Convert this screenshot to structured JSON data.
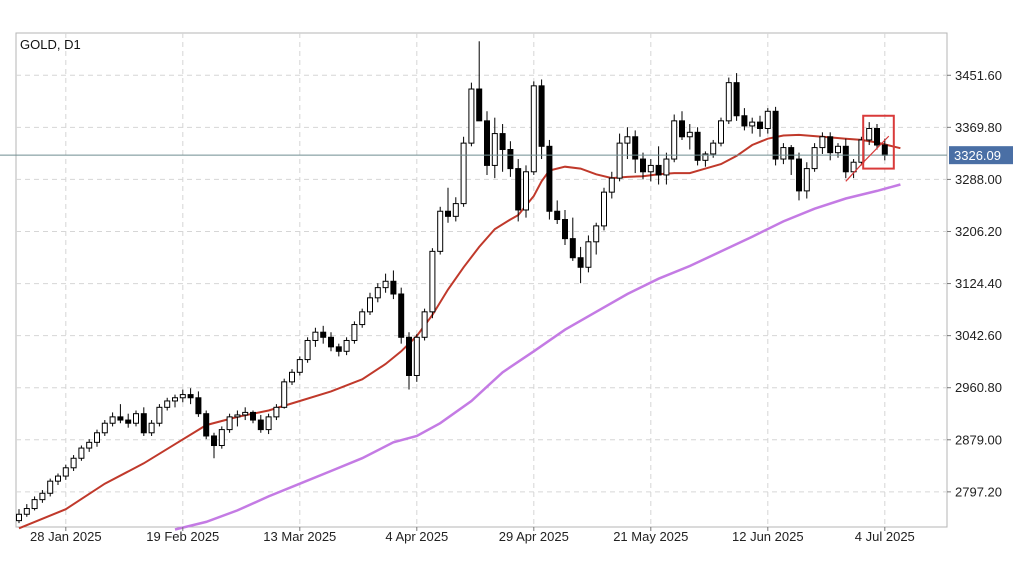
{
  "chart_data": {
    "type": "candlestick",
    "title": "GOLD, D1",
    "current_price_label": "3326.09",
    "y_tick_labels": [
      "3451.60",
      "3369.80",
      "3288.00",
      "3206.20",
      "3124.40",
      "3042.60",
      "2960.80",
      "2879.00",
      "2797.20"
    ],
    "y_ticks": [
      3451.6,
      3369.8,
      3288.0,
      3206.2,
      3124.4,
      3042.6,
      2960.8,
      2879.0,
      2797.2
    ],
    "ylim": [
      2742,
      3518
    ],
    "x_tick_labels": [
      "28 Jan 2025",
      "19 Feb 2025",
      "13 Mar 2025",
      "4 Apr 2025",
      "29 Apr 2025",
      "21 May 2025",
      "12 Jun 2025",
      "4 Jul 2025"
    ],
    "x_tick_indices": [
      6,
      21,
      36,
      51,
      66,
      81,
      96,
      111
    ],
    "grid": true,
    "current_price": 3326.09,
    "candles": [
      [
        2752,
        2770,
        2748,
        2762
      ],
      [
        2762,
        2778,
        2758,
        2771
      ],
      [
        2771,
        2790,
        2768,
        2785
      ],
      [
        2785,
        2800,
        2780,
        2795
      ],
      [
        2795,
        2818,
        2790,
        2814
      ],
      [
        2814,
        2826,
        2808,
        2822
      ],
      [
        2822,
        2840,
        2816,
        2835
      ],
      [
        2835,
        2855,
        2830,
        2850
      ],
      [
        2850,
        2870,
        2846,
        2866
      ],
      [
        2866,
        2880,
        2860,
        2875
      ],
      [
        2875,
        2895,
        2868,
        2890
      ],
      [
        2890,
        2910,
        2885,
        2905
      ],
      [
        2905,
        2922,
        2900,
        2915
      ],
      [
        2915,
        2935,
        2905,
        2910
      ],
      [
        2910,
        2920,
        2898,
        2905
      ],
      [
        2905,
        2925,
        2900,
        2920
      ],
      [
        2920,
        2930,
        2885,
        2890
      ],
      [
        2890,
        2910,
        2885,
        2905
      ],
      [
        2905,
        2935,
        2900,
        2930
      ],
      [
        2930,
        2945,
        2925,
        2940
      ],
      [
        2940,
        2950,
        2930,
        2945
      ],
      [
        2945,
        2958,
        2938,
        2950
      ],
      [
        2950,
        2960,
        2935,
        2945
      ],
      [
        2945,
        2955,
        2915,
        2920
      ],
      [
        2920,
        2925,
        2880,
        2885
      ],
      [
        2885,
        2890,
        2850,
        2870
      ],
      [
        2870,
        2900,
        2865,
        2895
      ],
      [
        2895,
        2920,
        2890,
        2915
      ],
      [
        2915,
        2925,
        2900,
        2918
      ],
      [
        2918,
        2930,
        2910,
        2922
      ],
      [
        2922,
        2925,
        2905,
        2910
      ],
      [
        2910,
        2918,
        2890,
        2895
      ],
      [
        2895,
        2920,
        2888,
        2915
      ],
      [
        2915,
        2935,
        2910,
        2930
      ],
      [
        2930,
        2975,
        2928,
        2970
      ],
      [
        2970,
        2990,
        2965,
        2985
      ],
      [
        2985,
        3010,
        2980,
        3005
      ],
      [
        3005,
        3040,
        3000,
        3035
      ],
      [
        3035,
        3055,
        3025,
        3048
      ],
      [
        3048,
        3058,
        3030,
        3040
      ],
      [
        3040,
        3048,
        3018,
        3025
      ],
      [
        3025,
        3030,
        3010,
        3018
      ],
      [
        3018,
        3040,
        3012,
        3035
      ],
      [
        3035,
        3065,
        3030,
        3060
      ],
      [
        3060,
        3085,
        3055,
        3080
      ],
      [
        3080,
        3110,
        3075,
        3102
      ],
      [
        3102,
        3125,
        3095,
        3118
      ],
      [
        3118,
        3140,
        3110,
        3128
      ],
      [
        3128,
        3145,
        3100,
        3108
      ],
      [
        3108,
        3118,
        3030,
        3040
      ],
      [
        3040,
        3048,
        2958,
        2980
      ],
      [
        2980,
        3045,
        2970,
        3040
      ],
      [
        3040,
        3085,
        3035,
        3080
      ],
      [
        3080,
        3180,
        3070,
        3175
      ],
      [
        3175,
        3245,
        3170,
        3238
      ],
      [
        3238,
        3275,
        3220,
        3230
      ],
      [
        3230,
        3260,
        3222,
        3250
      ],
      [
        3250,
        3355,
        3245,
        3345
      ],
      [
        3345,
        3440,
        3340,
        3430
      ],
      [
        3430,
        3505,
        3380,
        3380
      ],
      [
        3380,
        3395,
        3295,
        3310
      ],
      [
        3310,
        3385,
        3290,
        3360
      ],
      [
        3360,
        3375,
        3300,
        3335
      ],
      [
        3335,
        3348,
        3292,
        3305
      ],
      [
        3305,
        3320,
        3222,
        3240
      ],
      [
        3240,
        3310,
        3228,
        3300
      ],
      [
        3300,
        3442,
        3295,
        3435
      ],
      [
        3435,
        3445,
        3320,
        3340
      ],
      [
        3340,
        3350,
        3225,
        3238
      ],
      [
        3238,
        3255,
        3218,
        3225
      ],
      [
        3225,
        3240,
        3185,
        3195
      ],
      [
        3195,
        3228,
        3160,
        3165
      ],
      [
        3165,
        3182,
        3125,
        3150
      ],
      [
        3150,
        3200,
        3142,
        3190
      ],
      [
        3190,
        3220,
        3170,
        3215
      ],
      [
        3215,
        3275,
        3208,
        3268
      ],
      [
        3268,
        3300,
        3258,
        3290
      ],
      [
        3290,
        3360,
        3285,
        3345
      ],
      [
        3345,
        3370,
        3320,
        3355
      ],
      [
        3355,
        3365,
        3298,
        3320
      ],
      [
        3320,
        3330,
        3288,
        3300
      ],
      [
        3300,
        3320,
        3285,
        3310
      ],
      [
        3310,
        3340,
        3280,
        3295
      ],
      [
        3295,
        3330,
        3280,
        3320
      ],
      [
        3320,
        3390,
        3315,
        3380
      ],
      [
        3380,
        3395,
        3350,
        3355
      ],
      [
        3355,
        3375,
        3335,
        3362
      ],
      [
        3362,
        3370,
        3310,
        3318
      ],
      [
        3318,
        3332,
        3308,
        3328
      ],
      [
        3328,
        3350,
        3322,
        3345
      ],
      [
        3345,
        3385,
        3340,
        3380
      ],
      [
        3380,
        3448,
        3375,
        3440
      ],
      [
        3440,
        3455,
        3380,
        3388
      ],
      [
        3388,
        3400,
        3365,
        3372
      ],
      [
        3372,
        3385,
        3360,
        3378
      ],
      [
        3378,
        3388,
        3355,
        3368
      ],
      [
        3368,
        3400,
        3360,
        3395
      ],
      [
        3395,
        3402,
        3310,
        3320
      ],
      [
        3320,
        3345,
        3312,
        3338
      ],
      [
        3338,
        3342,
        3295,
        3320
      ],
      [
        3320,
        3330,
        3255,
        3270
      ],
      [
        3270,
        3315,
        3258,
        3305
      ],
      [
        3305,
        3345,
        3300,
        3338
      ],
      [
        3338,
        3362,
        3328,
        3355
      ],
      [
        3355,
        3362,
        3318,
        3330
      ],
      [
        3330,
        3345,
        3322,
        3340
      ],
      [
        3340,
        3352,
        3290,
        3300
      ],
      [
        3300,
        3320,
        3290,
        3315
      ],
      [
        3315,
        3355,
        3310,
        3350
      ],
      [
        3350,
        3378,
        3342,
        3368
      ],
      [
        3368,
        3375,
        3335,
        3342
      ],
      [
        3342,
        3352,
        3318,
        3326
      ]
    ],
    "ma_fast": [
      [
        0,
        2740
      ],
      [
        6,
        2770
      ],
      [
        11,
        2810
      ],
      [
        16,
        2842
      ],
      [
        20,
        2872
      ],
      [
        24,
        2902
      ],
      [
        28,
        2915
      ],
      [
        32,
        2925
      ],
      [
        36,
        2940
      ],
      [
        40,
        2955
      ],
      [
        44,
        2974
      ],
      [
        47,
        2998
      ],
      [
        49,
        3018
      ],
      [
        51,
        3042
      ],
      [
        53,
        3075
      ],
      [
        55,
        3115
      ],
      [
        57,
        3150
      ],
      [
        59,
        3182
      ],
      [
        61,
        3210
      ],
      [
        63,
        3225
      ],
      [
        64,
        3232
      ],
      [
        66,
        3262
      ],
      [
        67,
        3285
      ],
      [
        68,
        3302
      ],
      [
        70,
        3308
      ],
      [
        72,
        3305
      ],
      [
        74,
        3296
      ],
      [
        76,
        3290
      ],
      [
        78,
        3292
      ],
      [
        80,
        3293
      ],
      [
        82,
        3296
      ],
      [
        84,
        3298
      ],
      [
        86,
        3298
      ],
      [
        88,
        3305
      ],
      [
        90,
        3312
      ],
      [
        92,
        3325
      ],
      [
        94,
        3342
      ],
      [
        96,
        3352
      ],
      [
        98,
        3357
      ],
      [
        100,
        3358
      ],
      [
        102,
        3356
      ],
      [
        104,
        3354
      ],
      [
        106,
        3352
      ],
      [
        108,
        3350
      ],
      [
        110,
        3346
      ],
      [
        112,
        3340
      ],
      [
        113,
        3337
      ]
    ],
    "ma_slow": [
      [
        20,
        2738
      ],
      [
        24,
        2750
      ],
      [
        28,
        2768
      ],
      [
        32,
        2790
      ],
      [
        36,
        2810
      ],
      [
        40,
        2830
      ],
      [
        44,
        2850
      ],
      [
        48,
        2875
      ],
      [
        51,
        2885
      ],
      [
        54,
        2905
      ],
      [
        58,
        2940
      ],
      [
        62,
        2985
      ],
      [
        66,
        3018
      ],
      [
        70,
        3052
      ],
      [
        74,
        3080
      ],
      [
        78,
        3108
      ],
      [
        82,
        3132
      ],
      [
        86,
        3152
      ],
      [
        90,
        3175
      ],
      [
        94,
        3198
      ],
      [
        98,
        3222
      ],
      [
        102,
        3242
      ],
      [
        106,
        3258
      ],
      [
        110,
        3270
      ],
      [
        113,
        3280
      ]
    ],
    "colors": {
      "up_fill": "#ffffff",
      "down_fill": "#000000",
      "candle_outline": "#000000",
      "ma_fast": "#c0392b",
      "ma_slow": "#c47be4",
      "price_line": "#6f8e91",
      "price_tag_bg": "#4a6fa5",
      "highlight_box": "#d93a3a",
      "grid": "#d6d6d6"
    }
  }
}
